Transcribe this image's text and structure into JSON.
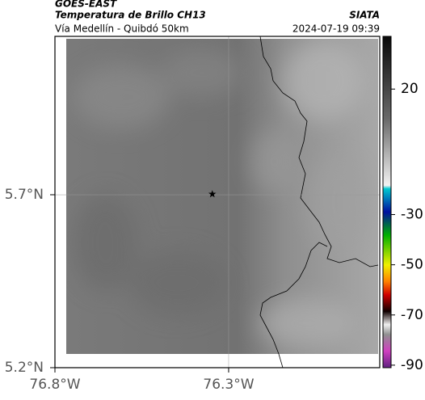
{
  "header": {
    "agency": "GOES-EAST",
    "product": "Temperatura de Brillo CH13",
    "org": "SIATA",
    "route": "Vía Medellín - Quibdó 50km",
    "timestamp": "2024-07-19 09:39"
  },
  "map": {
    "xlim": [
      -76.8,
      -75.865
    ],
    "ylim": [
      5.2,
      6.158
    ],
    "xticks": [
      {
        "value": -76.8,
        "label": "76.8°W"
      },
      {
        "value": -76.3,
        "label": "76.3°W"
      }
    ],
    "yticks": [
      {
        "value": 5.7,
        "label": "5.7°N"
      },
      {
        "value": 5.2,
        "label": "5.2°N"
      }
    ],
    "grid": true,
    "marker": {
      "lon": -76.347,
      "lat": 5.702
    }
  },
  "colorbar": {
    "lim": [
      -91,
      41
    ],
    "ticks": [
      20,
      -30,
      -50,
      -70,
      -90
    ]
  }
}
